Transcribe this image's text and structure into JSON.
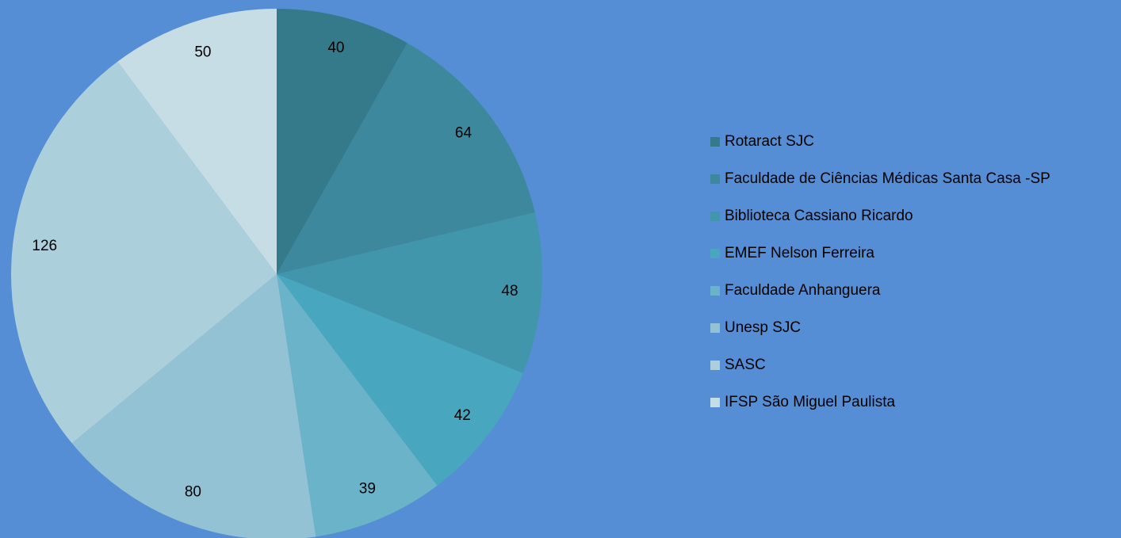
{
  "chart_data": {
    "type": "pie",
    "categories": [
      "Rotaract SJC",
      "Faculdade de Ciências Médicas Santa Casa -SP",
      "Biblioteca Cassiano Ricardo",
      "EMEF Nelson Ferreira",
      "Faculdade Anhanguera",
      "Unesp SJC",
      "SASC",
      "IFSP São Miguel Paulista"
    ],
    "values": [
      40,
      64,
      48,
      42,
      39,
      80,
      126,
      50
    ],
    "colors": [
      "#357a8a",
      "#3d889c",
      "#4296ac",
      "#48a6bf",
      "#6ab3c9",
      "#93c2d4",
      "#accfdc",
      "#c7dde6"
    ],
    "legend": "right"
  }
}
